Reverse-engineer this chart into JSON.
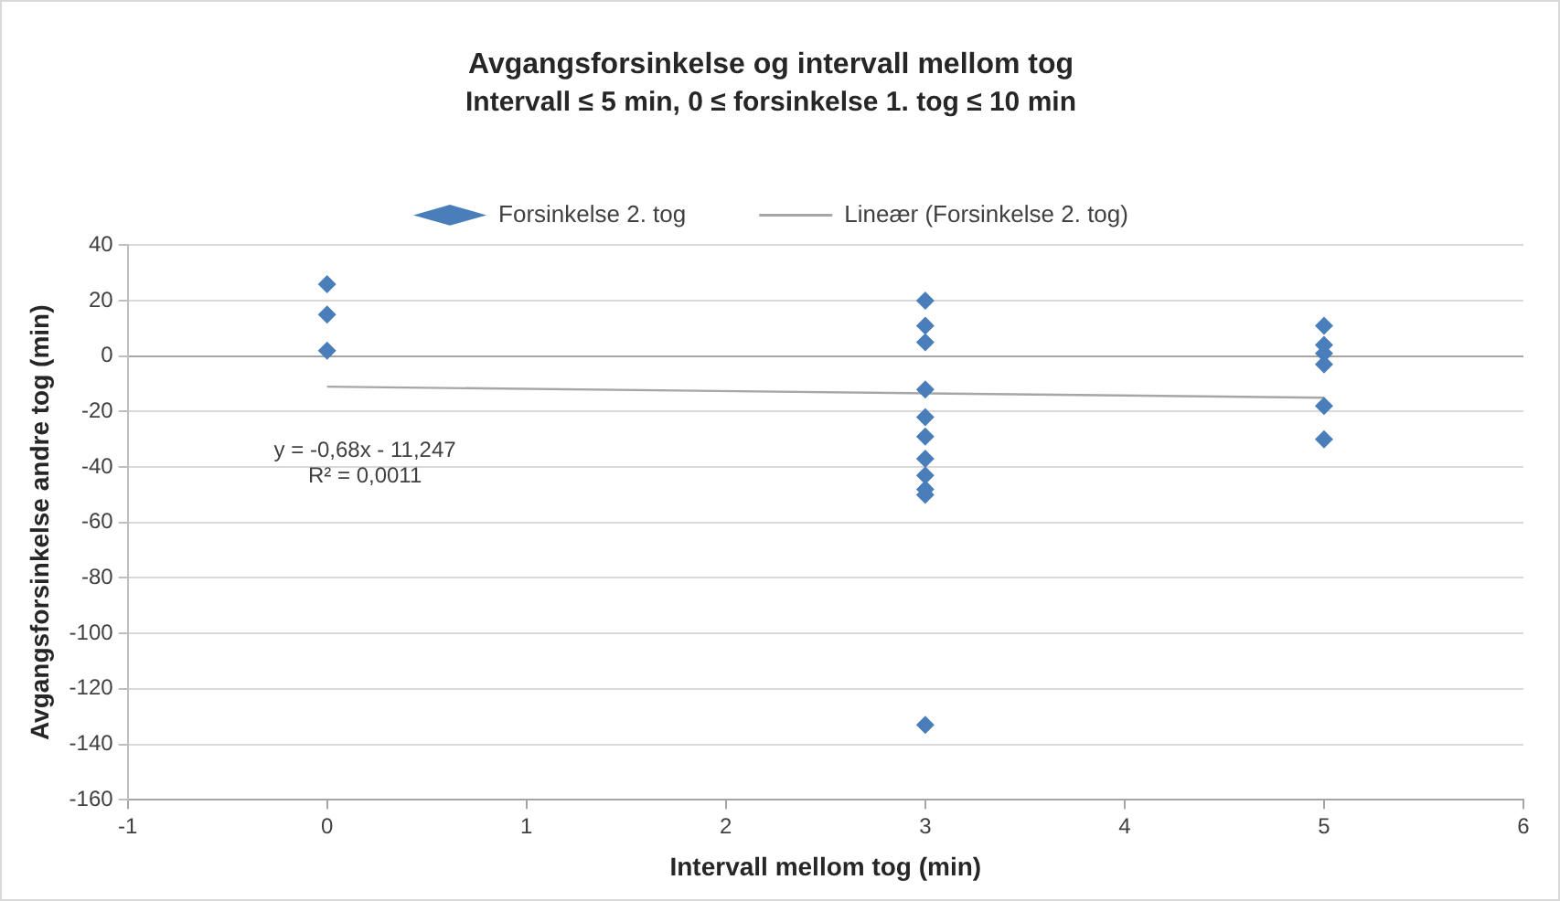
{
  "chart_data": {
    "type": "scatter",
    "title": "Avgangsforsinkelse og intervall mellom tog",
    "subtitle": "Intervall ≤ 5 min, 0 ≤ forsinkelse 1. tog ≤ 10 min",
    "xlabel": "Intervall mellom tog (min)",
    "ylabel": "Avgangsforsinkelse andre tog (min)",
    "series": [
      {
        "name": "Forsinkelse 2. tog",
        "color": "#4a7ebb",
        "marker": "diamond",
        "x": [
          0,
          0,
          0,
          3,
          3,
          3,
          3,
          3,
          3,
          3,
          3,
          3,
          3,
          3,
          5,
          5,
          5,
          5,
          5,
          5
        ],
        "values": [
          26,
          15,
          2,
          20,
          11,
          5,
          -12,
          -22,
          -29,
          -37,
          -43,
          -48,
          -50,
          -133,
          11,
          4,
          1,
          -3,
          -18,
          -30
        ]
      },
      {
        "name": "Lineær (Forsinkelse 2. tog)",
        "type": "line",
        "color": "#a6a6a6",
        "marker": "none",
        "x": [
          0,
          5
        ],
        "values": [
          -11,
          -15
        ]
      }
    ],
    "xlim": [
      -1,
      6
    ],
    "xticks": [
      -1,
      0,
      1,
      2,
      3,
      4,
      5,
      6
    ],
    "ylim": [
      -160,
      40
    ],
    "yticks": [
      -160,
      -140,
      -120,
      -100,
      -80,
      -60,
      -40,
      -20,
      0,
      20,
      40
    ],
    "grid": "y",
    "legend": "top",
    "annotations": [
      "y = -0,68x - 11,247",
      "R² = 0,0011"
    ]
  }
}
